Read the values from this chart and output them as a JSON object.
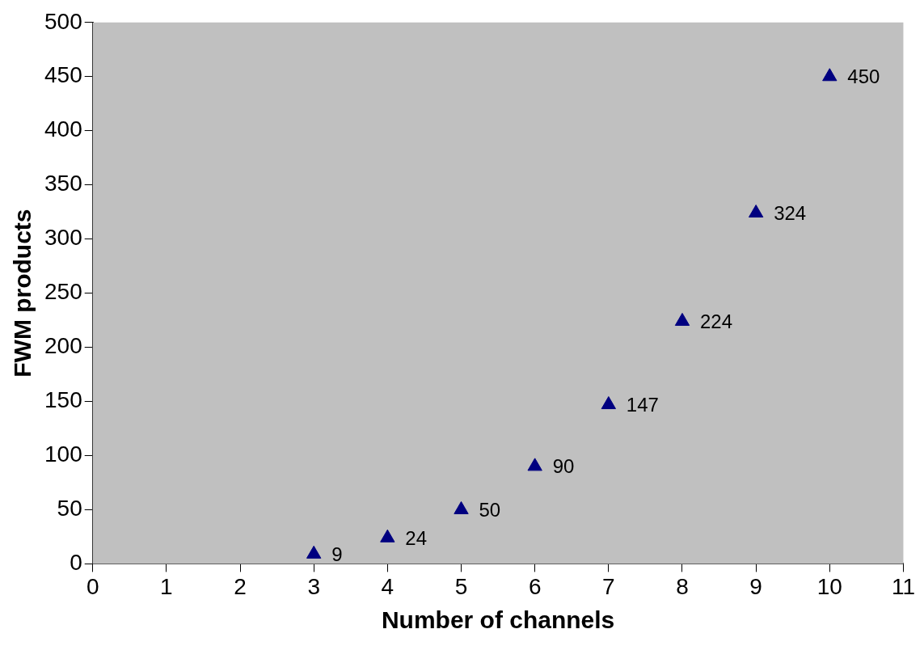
{
  "chart_data": {
    "type": "scatter",
    "xlabel": "Number of channels",
    "ylabel": "FWM products",
    "x": [
      3,
      4,
      5,
      6,
      7,
      8,
      9,
      10
    ],
    "series": [
      {
        "color": "#000080",
        "values": [
          9,
          24,
          50,
          90,
          147,
          224,
          324,
          450
        ]
      }
    ],
    "xlim": [
      0,
      11
    ],
    "xticks": [
      0,
      1,
      2,
      3,
      4,
      5,
      6,
      7,
      8,
      9,
      10,
      11
    ],
    "ylim": [
      0,
      500
    ],
    "yticks": [
      0,
      50,
      100,
      150,
      200,
      250,
      300,
      350,
      400,
      450,
      500
    ],
    "marker": "triangle",
    "grid": false,
    "legend": false,
    "data_labels": true
  }
}
